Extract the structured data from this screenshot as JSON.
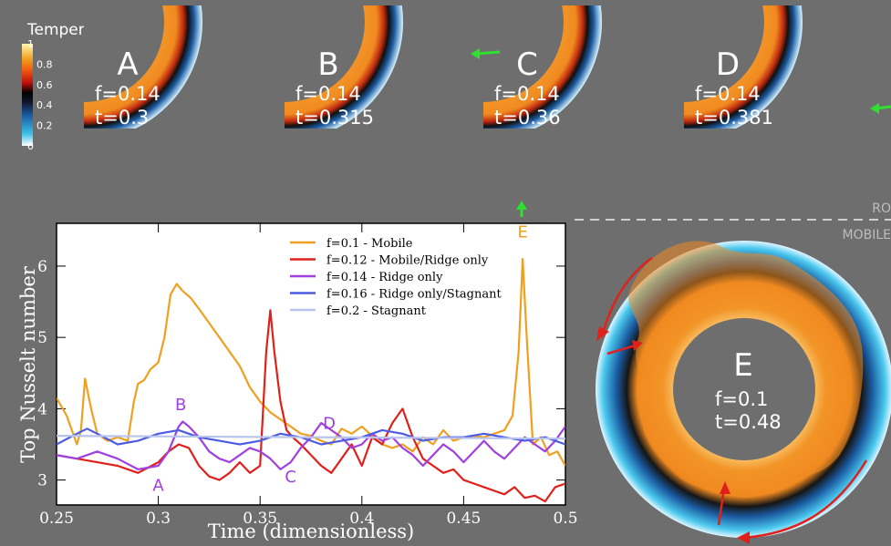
{
  "colorbar": {
    "title": "Temperature",
    "ticks": [
      "1",
      "0.8",
      "0.6",
      "0.4",
      "0.2",
      "0"
    ],
    "tick_values": [
      1,
      0.8,
      0.6,
      0.4,
      0.2,
      0
    ]
  },
  "snapshots": [
    {
      "letter": "A",
      "f_text": "f=0.14",
      "t_text": "t=0.3"
    },
    {
      "letter": "B",
      "f_text": "f=0.14",
      "t_text": "t=0.315"
    },
    {
      "letter": "C",
      "f_text": "f=0.14",
      "t_text": "t=0.36"
    },
    {
      "letter": "D",
      "f_text": "f=0.14",
      "t_text": "t=0.381"
    }
  ],
  "big_snapshot": {
    "letter": "E",
    "f_text": "f=0.1",
    "t_text": "t=0.48"
  },
  "regime_labels": {
    "upper": "RO",
    "lower": "MOBILE"
  },
  "chart_data": {
    "type": "line",
    "xlabel": "Time (dimensionless)",
    "ylabel": "Top Nusselt number",
    "xlim": [
      0.25,
      0.5
    ],
    "ylim": [
      2.65,
      6.6
    ],
    "xticks": [
      "0.25",
      "0.3",
      "0.35",
      "0.4",
      "0.45",
      "0.5"
    ],
    "xtick_values": [
      0.25,
      0.3,
      0.35,
      0.4,
      0.45,
      0.5
    ],
    "yticks": [
      "3",
      "4",
      "5",
      "6"
    ],
    "ytick_values": [
      3,
      4,
      5,
      6
    ],
    "legend_position": "top-right",
    "series": [
      {
        "name": "f=0.1   - Mobile",
        "color": "#f0a020",
        "x": [
          0.25,
          0.255,
          0.26,
          0.262,
          0.264,
          0.267,
          0.27,
          0.275,
          0.28,
          0.285,
          0.288,
          0.29,
          0.293,
          0.296,
          0.3,
          0.303,
          0.306,
          0.309,
          0.312,
          0.316,
          0.32,
          0.325,
          0.33,
          0.335,
          0.34,
          0.345,
          0.35,
          0.355,
          0.36,
          0.365,
          0.37,
          0.375,
          0.38,
          0.385,
          0.39,
          0.395,
          0.4,
          0.405,
          0.41,
          0.415,
          0.42,
          0.425,
          0.43,
          0.435,
          0.44,
          0.445,
          0.45,
          0.455,
          0.46,
          0.465,
          0.47,
          0.474,
          0.477,
          0.479,
          0.481,
          0.484,
          0.488,
          0.492,
          0.496,
          0.5
        ],
        "y": [
          4.15,
          3.9,
          3.5,
          3.7,
          4.42,
          4.0,
          3.65,
          3.55,
          3.6,
          3.55,
          4.1,
          4.35,
          4.4,
          4.55,
          4.65,
          5.0,
          5.6,
          5.75,
          5.65,
          5.55,
          5.4,
          5.2,
          5.0,
          4.8,
          4.6,
          4.3,
          4.1,
          3.95,
          3.85,
          3.75,
          3.65,
          3.62,
          3.55,
          3.5,
          3.72,
          3.65,
          3.75,
          3.62,
          3.5,
          3.45,
          3.5,
          3.4,
          3.6,
          3.5,
          3.7,
          3.55,
          3.6,
          3.62,
          3.6,
          3.65,
          3.7,
          3.9,
          4.8,
          6.1,
          5.0,
          3.5,
          3.6,
          3.35,
          3.4,
          3.2
        ]
      },
      {
        "name": "f=0.12  - Mobile/Ridge only",
        "color": "#e0201a",
        "x": [
          0.25,
          0.26,
          0.27,
          0.28,
          0.29,
          0.3,
          0.305,
          0.31,
          0.315,
          0.32,
          0.325,
          0.33,
          0.335,
          0.34,
          0.345,
          0.35,
          0.353,
          0.355,
          0.357,
          0.36,
          0.363,
          0.366,
          0.37,
          0.375,
          0.38,
          0.385,
          0.39,
          0.395,
          0.4,
          0.405,
          0.41,
          0.415,
          0.42,
          0.425,
          0.43,
          0.435,
          0.44,
          0.445,
          0.45,
          0.455,
          0.46,
          0.465,
          0.47,
          0.475,
          0.48,
          0.485,
          0.49,
          0.495,
          0.5
        ],
        "y": [
          3.35,
          3.3,
          3.25,
          3.2,
          3.1,
          3.25,
          3.4,
          3.5,
          3.45,
          3.2,
          3.05,
          3.0,
          3.1,
          3.25,
          3.1,
          3.2,
          4.8,
          5.38,
          4.8,
          4.1,
          3.7,
          3.6,
          3.5,
          3.35,
          3.2,
          3.1,
          3.3,
          3.5,
          3.2,
          3.6,
          3.5,
          3.8,
          4.0,
          3.6,
          3.3,
          3.2,
          3.1,
          3.15,
          3.0,
          2.95,
          2.9,
          2.85,
          2.8,
          2.9,
          2.75,
          2.78,
          2.7,
          2.9,
          2.95
        ]
      },
      {
        "name": "f=0.14  - Ridge only",
        "color": "#a040e0",
        "x": [
          0.25,
          0.26,
          0.27,
          0.28,
          0.29,
          0.3,
          0.305,
          0.31,
          0.312,
          0.315,
          0.32,
          0.325,
          0.33,
          0.335,
          0.34,
          0.345,
          0.35,
          0.355,
          0.36,
          0.365,
          0.37,
          0.375,
          0.38,
          0.385,
          0.39,
          0.395,
          0.4,
          0.405,
          0.41,
          0.415,
          0.42,
          0.425,
          0.43,
          0.435,
          0.44,
          0.445,
          0.45,
          0.455,
          0.46,
          0.465,
          0.47,
          0.475,
          0.48,
          0.485,
          0.49,
          0.495,
          0.5
        ],
        "y": [
          3.35,
          3.3,
          3.4,
          3.3,
          3.15,
          3.2,
          3.4,
          3.75,
          3.82,
          3.75,
          3.6,
          3.4,
          3.3,
          3.25,
          3.35,
          3.45,
          3.4,
          3.3,
          3.15,
          3.25,
          3.45,
          3.6,
          3.8,
          3.7,
          3.6,
          3.45,
          3.5,
          3.65,
          3.55,
          3.6,
          3.45,
          3.35,
          3.2,
          3.35,
          3.5,
          3.4,
          3.25,
          3.4,
          3.55,
          3.4,
          3.3,
          3.45,
          3.6,
          3.5,
          3.4,
          3.55,
          3.75
        ]
      },
      {
        "name": "f=0.16  - Ridge only/Stagnant",
        "color": "#4c5ce0",
        "x": [
          0.25,
          0.26,
          0.265,
          0.27,
          0.28,
          0.29,
          0.3,
          0.31,
          0.32,
          0.33,
          0.34,
          0.35,
          0.36,
          0.37,
          0.38,
          0.39,
          0.4,
          0.41,
          0.42,
          0.43,
          0.44,
          0.45,
          0.46,
          0.47,
          0.48,
          0.49,
          0.5
        ],
        "y": [
          3.5,
          3.65,
          3.72,
          3.65,
          3.5,
          3.55,
          3.65,
          3.7,
          3.6,
          3.55,
          3.5,
          3.55,
          3.65,
          3.6,
          3.5,
          3.55,
          3.6,
          3.7,
          3.65,
          3.55,
          3.6,
          3.6,
          3.65,
          3.6,
          3.55,
          3.6,
          3.5
        ]
      },
      {
        "name": "f=0.2   - Stagnant",
        "color": "#b8c4ee",
        "x": [
          0.25,
          0.5
        ],
        "y": [
          3.62,
          3.58
        ]
      }
    ],
    "annotations": [
      {
        "text": "A",
        "x": 0.3,
        "y": 2.85,
        "color": "#a040e0"
      },
      {
        "text": "B",
        "x": 0.311,
        "y": 3.98,
        "color": "#a040e0"
      },
      {
        "text": "C",
        "x": 0.365,
        "y": 2.97,
        "color": "#a040e0"
      },
      {
        "text": "D",
        "x": 0.384,
        "y": 3.72,
        "color": "#a040e0"
      },
      {
        "text": "E",
        "x": 0.479,
        "y": 6.4,
        "color": "#f0a020"
      }
    ]
  }
}
